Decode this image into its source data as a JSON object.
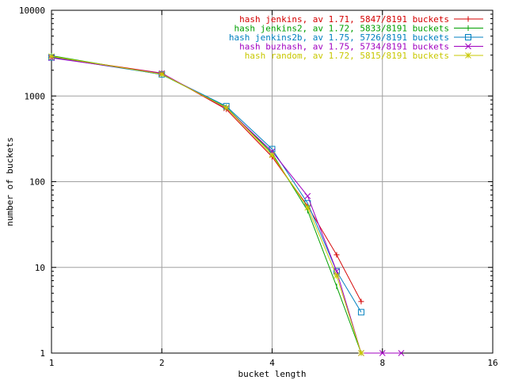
{
  "chart_data": {
    "type": "line",
    "xlabel": "bucket length",
    "ylabel": "number of buckets",
    "x_scale": "log2",
    "y_scale": "log10",
    "xlim": [
      1,
      16
    ],
    "ylim": [
      1,
      10000
    ],
    "x_ticks": [
      1,
      2,
      4,
      8,
      16
    ],
    "y_ticks": [
      1,
      10,
      100,
      1000,
      10000
    ],
    "x_tick_labels": [
      "1",
      "2",
      "4",
      "8",
      "16"
    ],
    "y_tick_labels": [
      "1",
      "10",
      "100",
      "1000",
      "10000"
    ],
    "grid": true,
    "legend_position": "top-right",
    "series": [
      {
        "name": "hash jenkins, av 1.71, 5847/8191 buckets",
        "color": "#d40000",
        "marker": "plus",
        "points": [
          [
            1,
            2850
          ],
          [
            2,
            1850
          ],
          [
            3,
            700
          ],
          [
            4,
            195
          ],
          [
            5,
            52
          ],
          [
            6,
            14
          ],
          [
            7,
            4
          ]
        ]
      },
      {
        "name": "hash jenkins2, av 1.72, 5833/8191 buckets",
        "color": "#00a000",
        "marker": "vline",
        "points": [
          [
            1,
            2950
          ],
          [
            2,
            1780
          ],
          [
            3,
            740
          ],
          [
            4,
            215
          ],
          [
            5,
            46
          ],
          [
            6,
            6
          ],
          [
            7,
            1
          ]
        ]
      },
      {
        "name": "hash jenkins2b, av 1.75, 5726/8191 buckets",
        "color": "#0080c0",
        "marker": "square",
        "points": [
          [
            1,
            2820
          ],
          [
            2,
            1790
          ],
          [
            3,
            760
          ],
          [
            4,
            240
          ],
          [
            5,
            56
          ],
          [
            6,
            9
          ],
          [
            7,
            3
          ]
        ]
      },
      {
        "name": "hash buzhash, av 1.75, 5734/8191 buckets",
        "color": "#a000c0",
        "marker": "cross",
        "points": [
          [
            1,
            2780
          ],
          [
            2,
            1840
          ],
          [
            3,
            720
          ],
          [
            4,
            225
          ],
          [
            5,
            68
          ],
          [
            6,
            9
          ],
          [
            7,
            1
          ],
          [
            8,
            1
          ],
          [
            9,
            1
          ]
        ]
      },
      {
        "name": "hash random, av 1.72, 5815/8191 buckets",
        "color": "#c8c800",
        "marker": "star",
        "points": [
          [
            1,
            2900
          ],
          [
            2,
            1800
          ],
          [
            3,
            730
          ],
          [
            4,
            205
          ],
          [
            5,
            50
          ],
          [
            6,
            8
          ],
          [
            7,
            1
          ]
        ]
      }
    ]
  }
}
